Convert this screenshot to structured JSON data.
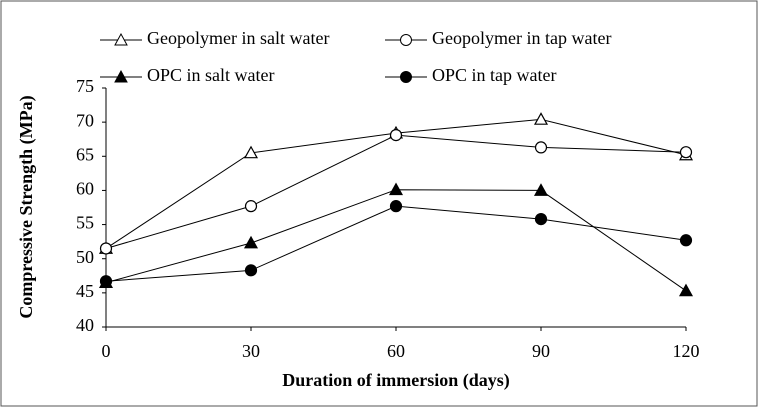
{
  "chart_data": {
    "type": "line",
    "x_label": "Duration of immersion (days)",
    "y_label": "Compressive Strength (MPa)",
    "x": [
      0,
      30,
      60,
      90,
      120
    ],
    "xlim": [
      0,
      120
    ],
    "xticks": [
      0,
      30,
      60,
      90,
      120
    ],
    "ylim": [
      40,
      75
    ],
    "yticks": [
      40,
      45,
      50,
      55,
      60,
      65,
      70,
      75
    ],
    "grid": false,
    "series": [
      {
        "name": "Geopolymer in salt water",
        "color": "#000000",
        "marker": "triangle",
        "filled": false,
        "values": [
          51.5,
          65.5,
          68.4,
          70.4,
          65.2
        ]
      },
      {
        "name": "Geopolymer in tap water",
        "color": "#000000",
        "marker": "circle",
        "filled": false,
        "values": [
          51.5,
          57.7,
          68.1,
          66.3,
          65.6
        ]
      },
      {
        "name": "OPC in salt water",
        "color": "#000000",
        "marker": "triangle",
        "filled": true,
        "values": [
          46.5,
          52.3,
          60.1,
          60.0,
          45.3
        ]
      },
      {
        "name": "OPC in tap water",
        "color": "#000000",
        "marker": "circle",
        "filled": true,
        "values": [
          46.7,
          48.3,
          57.7,
          55.8,
          52.7
        ]
      }
    ]
  }
}
